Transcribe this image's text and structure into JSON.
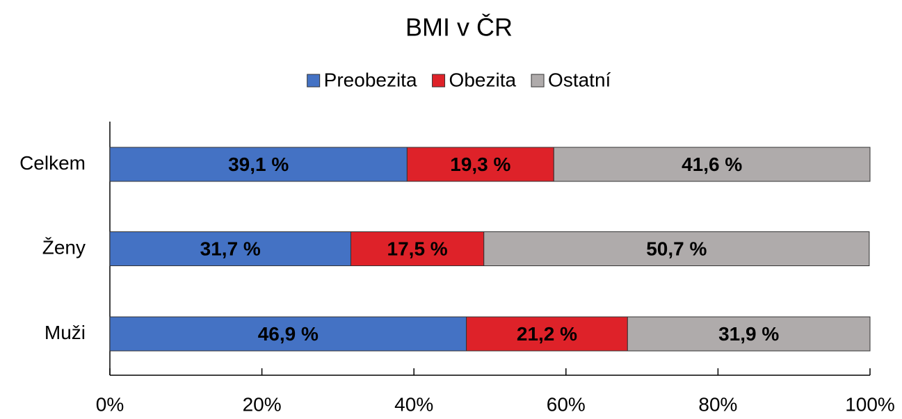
{
  "chart_data": {
    "type": "stacked-barh",
    "title": "BMI v ČR",
    "categories": [
      "Celkem",
      "Ženy",
      "Muži"
    ],
    "series": [
      {
        "name": "Preobezita",
        "color": "#4472c4",
        "values": [
          39.1,
          31.7,
          46.9
        ],
        "value_labels": [
          "39,1 %",
          "31,7 %",
          "46,9 %"
        ]
      },
      {
        "name": "Obezita",
        "color": "#de2229",
        "values": [
          19.3,
          17.5,
          21.2
        ],
        "value_labels": [
          "19,3 %",
          "17,5 %",
          "21,2 %"
        ]
      },
      {
        "name": "Ostatní",
        "color": "#afabab",
        "values": [
          41.6,
          50.7,
          31.9
        ],
        "value_labels": [
          "41,6 %",
          "50,7 %",
          "31,9 %"
        ]
      }
    ],
    "xlim": [
      0,
      100
    ],
    "xticks": [
      {
        "value": 0,
        "label": "0%"
      },
      {
        "value": 20,
        "label": "20%"
      },
      {
        "value": 40,
        "label": "40%"
      },
      {
        "value": 60,
        "label": "60%"
      },
      {
        "value": 80,
        "label": "80%"
      },
      {
        "value": 100,
        "label": "100%"
      }
    ],
    "legend": "top"
  }
}
